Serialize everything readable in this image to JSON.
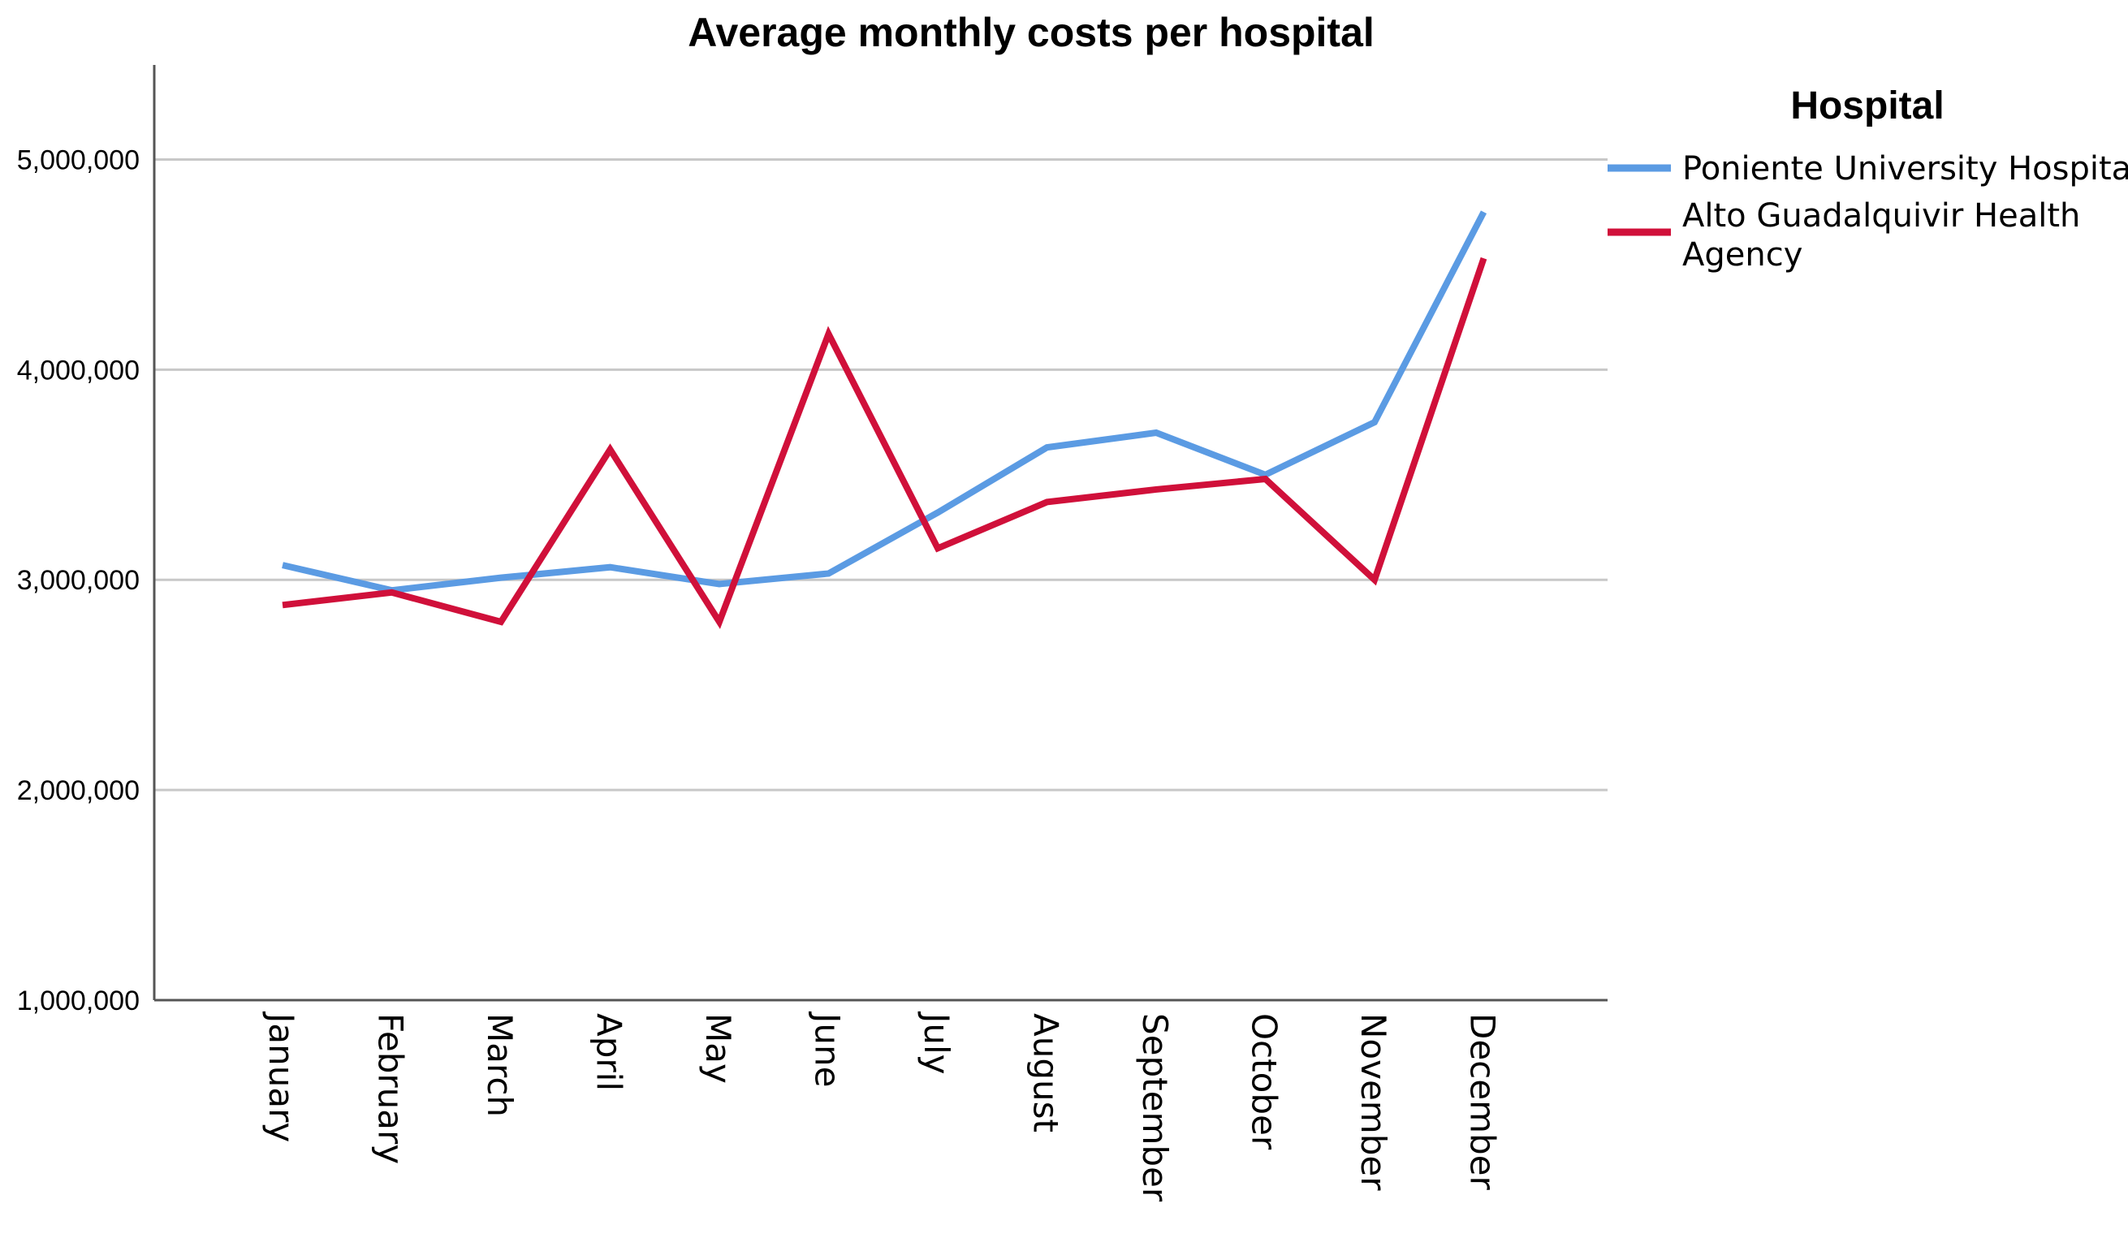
{
  "chart_data": {
    "type": "line",
    "title": "Average monthly costs per hospital",
    "xlabel": "",
    "ylabel": "",
    "categories": [
      "January",
      "February",
      "March",
      "April",
      "May",
      "June",
      "July",
      "August",
      "September",
      "October",
      "November",
      "December"
    ],
    "ylim": [
      1000000,
      5450000
    ],
    "yticks": [
      1000000,
      2000000,
      3000000,
      4000000,
      5000000
    ],
    "ytick_labels": [
      "1,000,000",
      "2,000,000",
      "3,000,000",
      "4,000,000",
      "5,000,000"
    ],
    "grid": true,
    "legend": {
      "title": "Hospital",
      "position": "right"
    },
    "series": [
      {
        "name": "Poniente University Hospital",
        "color": "#5b9be3",
        "values": [
          3070000,
          2950000,
          3010000,
          3060000,
          2980000,
          3030000,
          3320000,
          3630000,
          3700000,
          3500000,
          3750000,
          4750000
        ]
      },
      {
        "name": "Alto Guadalquivir Health Agency",
        "label_lines": [
          "Alto Guadalquivir Health",
          "Agency"
        ],
        "color": "#d0103a",
        "values": [
          2880000,
          2940000,
          2800000,
          3620000,
          2800000,
          4170000,
          3150000,
          3370000,
          3430000,
          3480000,
          3000000,
          4530000
        ]
      }
    ]
  }
}
